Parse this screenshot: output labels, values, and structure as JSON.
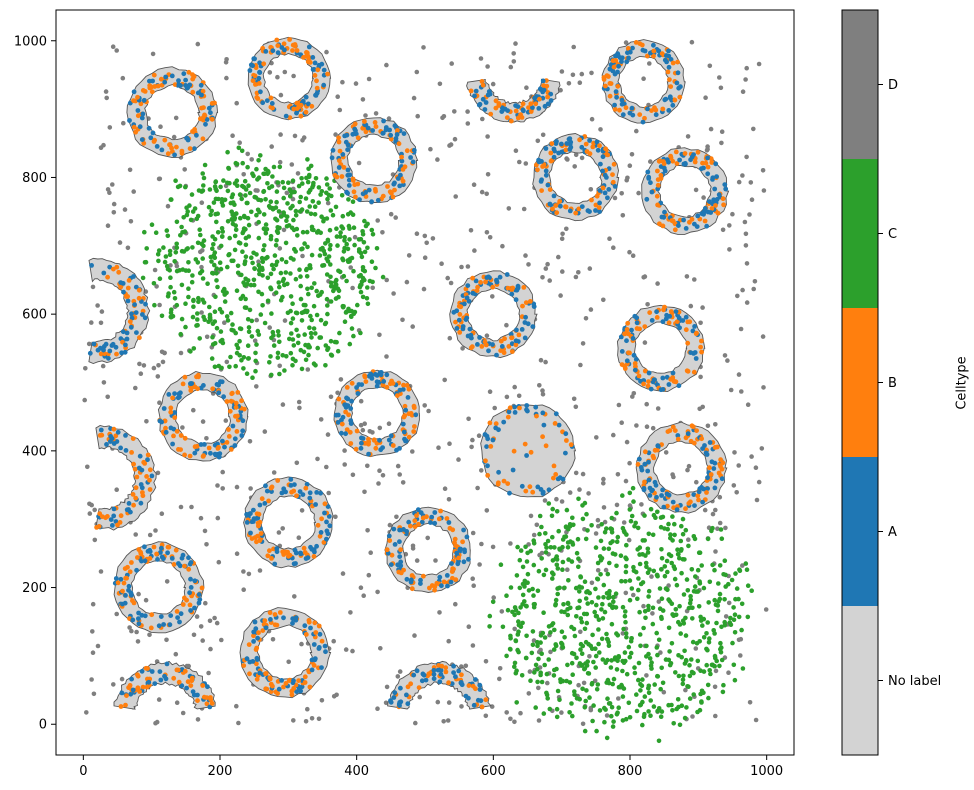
{
  "chart_data": {
    "type": "scatter",
    "title": "",
    "xlabel": "",
    "ylabel": "",
    "xlim": [
      -40,
      1040
    ],
    "ylim": [
      -45,
      1045
    ],
    "xticks": [
      0,
      200,
      400,
      600,
      800,
      1000
    ],
    "yticks": [
      0,
      200,
      400,
      600,
      800,
      1000
    ],
    "grid": false,
    "colorbar": {
      "label": "Celltype",
      "categories": [
        {
          "name": "No label",
          "color": "#d3d3d3"
        },
        {
          "name": "A",
          "color": "#1f77b4"
        },
        {
          "name": "B",
          "color": "#ff7f0e"
        },
        {
          "name": "C",
          "color": "#2ca02c"
        },
        {
          "name": "D",
          "color": "#7f7f7f"
        }
      ]
    },
    "rings": [
      {
        "cx": 130,
        "cy": 895,
        "r": 52,
        "arc": "full"
      },
      {
        "cx": 300,
        "cy": 945,
        "r": 48,
        "arc": "full"
      },
      {
        "cx": 630,
        "cy": 950,
        "r": 55,
        "arc": "bottom"
      },
      {
        "cx": 820,
        "cy": 940,
        "r": 48,
        "arc": "full"
      },
      {
        "cx": 425,
        "cy": 825,
        "r": 50,
        "arc": "full"
      },
      {
        "cx": 720,
        "cy": 800,
        "r": 50,
        "arc": "full"
      },
      {
        "cx": 880,
        "cy": 780,
        "r": 50,
        "arc": "full"
      },
      {
        "cx": 20,
        "cy": 605,
        "r": 60,
        "arc": "left-cut"
      },
      {
        "cx": 600,
        "cy": 600,
        "r": 50,
        "arc": "full"
      },
      {
        "cx": 845,
        "cy": 550,
        "r": 50,
        "arc": "full"
      },
      {
        "cx": 175,
        "cy": 450,
        "r": 52,
        "arc": "full"
      },
      {
        "cx": 430,
        "cy": 455,
        "r": 50,
        "arc": "full"
      },
      {
        "cx": 650,
        "cy": 400,
        "r": 55,
        "arc": "filled"
      },
      {
        "cx": 875,
        "cy": 375,
        "r": 52,
        "arc": "full"
      },
      {
        "cx": 30,
        "cy": 360,
        "r": 60,
        "arc": "left-cut"
      },
      {
        "cx": 300,
        "cy": 295,
        "r": 52,
        "arc": "full"
      },
      {
        "cx": 505,
        "cy": 255,
        "r": 50,
        "arc": "full"
      },
      {
        "cx": 110,
        "cy": 200,
        "r": 52,
        "arc": "full"
      },
      {
        "cx": 295,
        "cy": 105,
        "r": 52,
        "arc": "full"
      },
      {
        "cx": 120,
        "cy": 15,
        "r": 60,
        "arc": "top"
      },
      {
        "cx": 520,
        "cy": 15,
        "r": 60,
        "arc": "top"
      }
    ],
    "clusters": [
      {
        "label": "C",
        "cx": 265,
        "cy": 670,
        "r": 190,
        "count": 750
      },
      {
        "label": "C",
        "cx": 790,
        "cy": 160,
        "r": 205,
        "count": 750
      }
    ],
    "background": {
      "label": "D",
      "count": 900,
      "x_range": [
        0,
        1000
      ],
      "y_range": [
        0,
        1000
      ]
    }
  }
}
